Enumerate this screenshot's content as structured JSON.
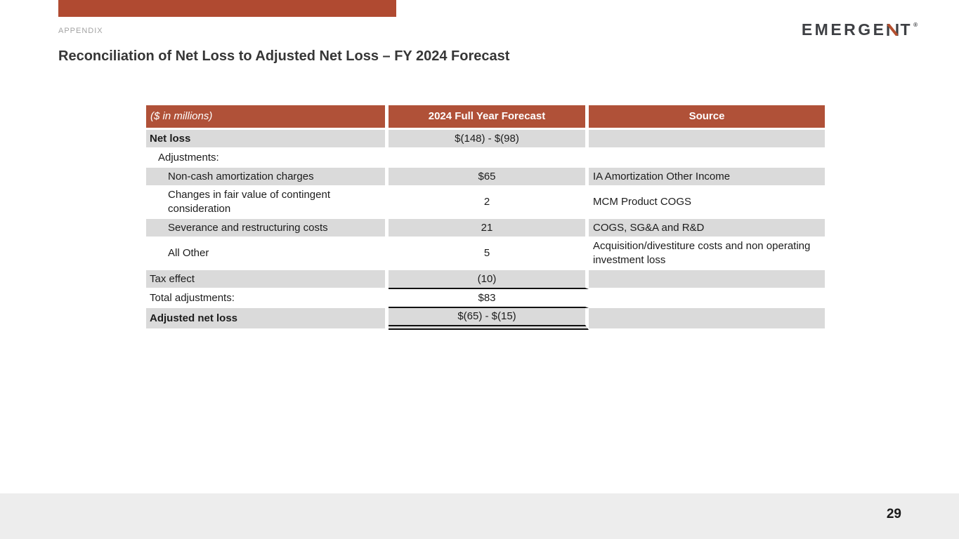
{
  "slide": {
    "section_label": "APPENDIX",
    "title": "Reconciliation of Net Loss to Adjusted Net Loss – FY 2024 Forecast",
    "page_number": "29"
  },
  "logo": {
    "text_before_n": "EMERGE",
    "text_after_n": "T",
    "trademark": "®"
  },
  "colors": {
    "accent_bar": "#b04a31",
    "table_header_bg": "#b05138",
    "row_shade": "#dadada",
    "footer_bg": "#ededed",
    "logo_dark": "#3e4044",
    "logo_accent": "#b5502f"
  },
  "table": {
    "headers": [
      {
        "label": "($ in millions)"
      },
      {
        "label": "2024 Full Year Forecast"
      },
      {
        "label": "Source"
      }
    ],
    "rows": [
      {
        "label": "Net loss",
        "bold": true,
        "indent": 0,
        "value": "$(148) - $(98)",
        "source": "",
        "shaded": true,
        "value_underline": "none"
      },
      {
        "label": "Adjustments:",
        "bold": false,
        "indent": 1,
        "value": "",
        "source": "",
        "shaded": false,
        "value_underline": "none"
      },
      {
        "label": "Non-cash amortization charges",
        "bold": false,
        "indent": 2,
        "value": "$65",
        "source": "IA Amortization Other Income",
        "shaded": true,
        "value_underline": "none"
      },
      {
        "label": "Changes in fair value of contingent consideration",
        "bold": false,
        "indent": 2,
        "value": "2",
        "source": "MCM Product COGS",
        "shaded": false,
        "value_underline": "none"
      },
      {
        "label": "Severance and restructuring costs",
        "bold": false,
        "indent": 2,
        "value": "21",
        "source": "COGS, SG&A and R&D",
        "shaded": true,
        "value_underline": "none"
      },
      {
        "label": "All Other",
        "bold": false,
        "indent": 2,
        "value": "5",
        "source": "Acquisition/divestiture costs and non operating investment loss",
        "shaded": false,
        "value_underline": "none"
      },
      {
        "label": "Tax effect",
        "bold": false,
        "indent": 0,
        "value": "(10)",
        "source": "",
        "shaded": true,
        "value_underline": "single"
      },
      {
        "label": "Total adjustments:",
        "bold": false,
        "indent": 0,
        "value": "$83",
        "source": "",
        "shaded": false,
        "value_underline": "single"
      },
      {
        "label": "Adjusted net loss",
        "bold": true,
        "indent": 0,
        "value": "$(65) - $(15)",
        "source": "",
        "shaded": true,
        "value_underline": "double"
      }
    ]
  }
}
